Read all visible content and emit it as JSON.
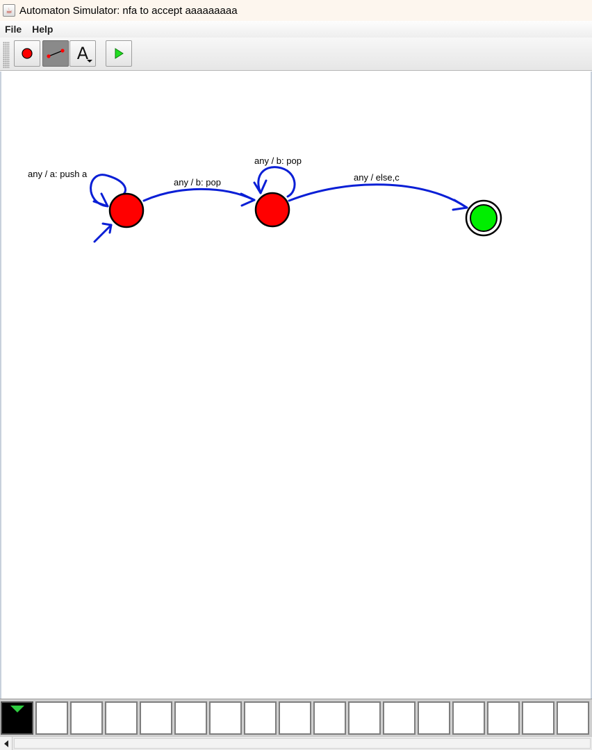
{
  "window": {
    "title": "Automaton Simulator: nfa to accept aaaaaaaaa",
    "app_icon": "java-cup-icon"
  },
  "menu": {
    "items": [
      {
        "label": "File"
      },
      {
        "label": "Help"
      }
    ]
  },
  "toolbar": {
    "tools": [
      {
        "name": "add-state-tool",
        "icon": "red-circle-icon",
        "active": false
      },
      {
        "name": "add-transition-tool",
        "icon": "transition-line-icon",
        "active": true
      },
      {
        "name": "text-tool",
        "icon": "letter-a-icon",
        "label": "A",
        "active": false
      },
      {
        "name": "run-tool",
        "icon": "play-icon",
        "active": false
      }
    ]
  },
  "automaton": {
    "states": [
      {
        "id": "q0",
        "type": "start",
        "color": "#ff0000"
      },
      {
        "id": "q1",
        "type": "normal",
        "color": "#ff0000"
      },
      {
        "id": "q2",
        "type": "accept",
        "color": "#00ee00"
      }
    ],
    "transitions": [
      {
        "from": "q0",
        "to": "q0",
        "label": "any / a: push a"
      },
      {
        "from": "q0",
        "to": "q1",
        "label": "any / b: pop"
      },
      {
        "from": "q1",
        "to": "q1",
        "label": "any / b: pop"
      },
      {
        "from": "q1",
        "to": "q2",
        "label": "any / else,c"
      }
    ],
    "edge_color": "#0a1fd6"
  },
  "tape": {
    "cells": [
      "",
      "",
      "",
      "",
      "",
      "",
      "",
      "",
      "",
      "",
      "",
      "",
      "",
      "",
      "",
      "",
      ""
    ],
    "head_index": 0,
    "head_color": "#2ecc40"
  }
}
